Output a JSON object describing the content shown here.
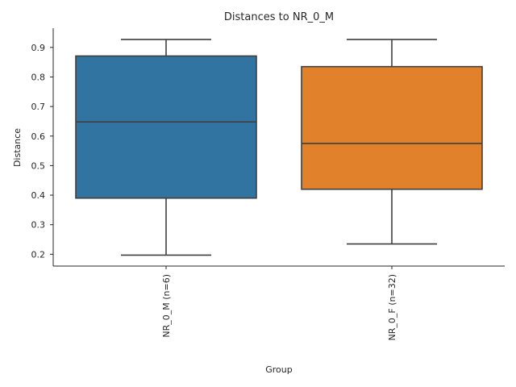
{
  "chart_data": {
    "type": "box",
    "title": "Distances to NR_0_M",
    "xlabel": "Group",
    "ylabel": "Distance",
    "ylim": [
      0.16,
      0.965
    ],
    "yticks": [
      0.2,
      0.3,
      0.4,
      0.5,
      0.6,
      0.7,
      0.8,
      0.9
    ],
    "grid": false,
    "categories": [
      "NR_0_M (n=6)",
      "NR_0_F (n=32)"
    ],
    "boxes": [
      {
        "category": "NR_0_M (n=6)",
        "whisker_low": 0.197,
        "q1": 0.39,
        "median": 0.648,
        "q3": 0.871,
        "whisker_high": 0.927,
        "color": "#3274a1"
      },
      {
        "category": "NR_0_F (n=32)",
        "whisker_low": 0.235,
        "q1": 0.42,
        "median": 0.575,
        "q3": 0.835,
        "whisker_high": 0.927,
        "color": "#e1812c"
      }
    ]
  }
}
